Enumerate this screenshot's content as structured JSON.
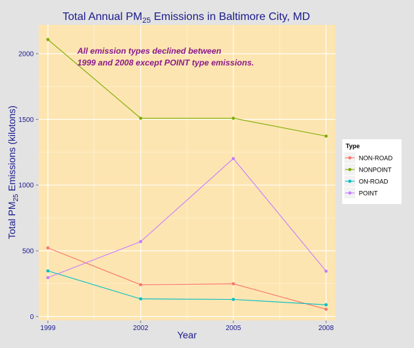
{
  "chart_data": {
    "type": "line",
    "title": "Total Annual PM25 Emissions in Baltimore City, MD",
    "title_parts": {
      "before": "Total Annual PM",
      "sub": "25",
      "after": " Emissions in Baltimore City, MD"
    },
    "xlabel": "Year",
    "ylabel": "Total PM25 Emissions (kilotons)",
    "ylabel_parts": {
      "before": "Total PM",
      "sub": "25",
      "after": " Emissions (kilotons)"
    },
    "x": [
      1999,
      2002,
      2005,
      2008
    ],
    "x_ticks": [
      "1999",
      "2002",
      "2005",
      "2008"
    ],
    "xlim": [
      1998.7,
      2008.3
    ],
    "ylim": [
      -30,
      2220
    ],
    "y_ticks": [
      0,
      500,
      1000,
      1500,
      2000
    ],
    "y_tick_labels": [
      "0",
      "500",
      "1000",
      "1500",
      "2000"
    ],
    "grid": true,
    "legend": {
      "title": "Type",
      "placement": "right"
    },
    "annotation": {
      "lines": [
        "All emission types declined between",
        "1999 and 2008 except POINT type emissions."
      ],
      "x": 1999.95,
      "y": 2000
    },
    "series": [
      {
        "name": "NON-ROAD",
        "color": "#f8766d",
        "values": [
          522,
          242,
          249,
          55
        ]
      },
      {
        "name": "NONPOINT",
        "color": "#7cae00",
        "values": [
          2108,
          1509,
          1509,
          1373
        ]
      },
      {
        "name": "ON-ROAD",
        "color": "#00bfc4",
        "values": [
          347,
          134,
          130,
          89
        ]
      },
      {
        "name": "POINT",
        "color": "#c77cff",
        "values": [
          296,
          570,
          1202,
          345
        ]
      }
    ],
    "colors": {
      "panel": "#fde5b1",
      "page": "#e3e3e3",
      "grid": "#ffffff",
      "text": "#1a1a8c"
    }
  }
}
